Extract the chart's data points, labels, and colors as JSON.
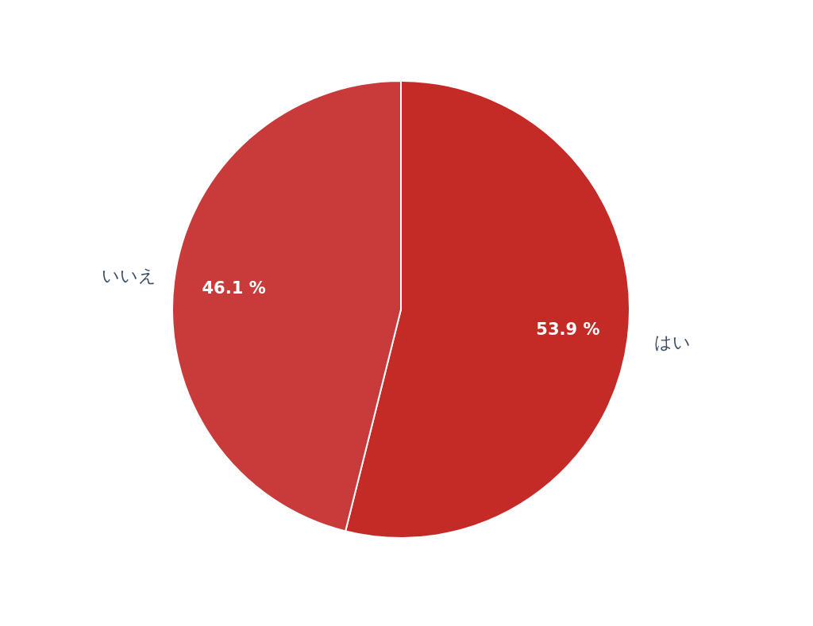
{
  "chart_data": {
    "type": "pie",
    "categories": [
      "はい",
      "いいえ"
    ],
    "values": [
      53.9,
      46.1
    ],
    "colors": [
      "#c42b27",
      "#c93a3a"
    ],
    "value_labels": [
      "53.9 %",
      "46.1 %"
    ],
    "legend": false
  }
}
